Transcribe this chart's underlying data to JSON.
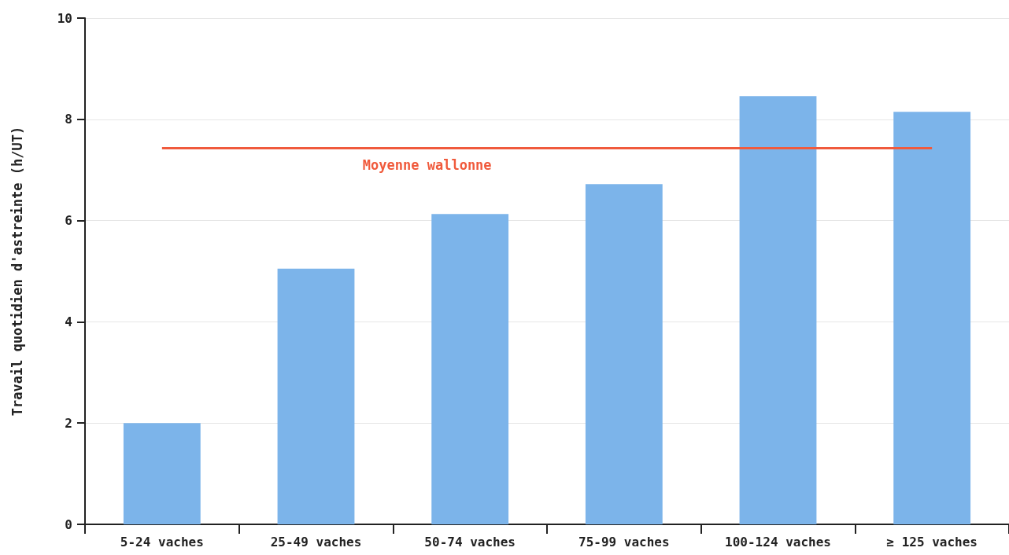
{
  "chart_data": {
    "type": "bar",
    "ylabel": "Travail quotidien d'astreinte (h/UT)",
    "categories": [
      "5-24 vaches",
      "25-49 vaches",
      "50-74 vaches",
      "75-99 vaches",
      "100-124 vaches",
      "≥ 125 vaches"
    ],
    "values": [
      2.0,
      5.05,
      6.13,
      6.72,
      8.46,
      8.15
    ],
    "color": "#7cb4ea",
    "ylim": [
      0,
      10
    ],
    "yticks": [
      0,
      2,
      4,
      6,
      8,
      10
    ],
    "grid": "y",
    "ref_lines": [
      {
        "axis": "y",
        "value": 7.44,
        "label": "Moyenne wallonne",
        "color": "#f05a3c"
      }
    ]
  }
}
